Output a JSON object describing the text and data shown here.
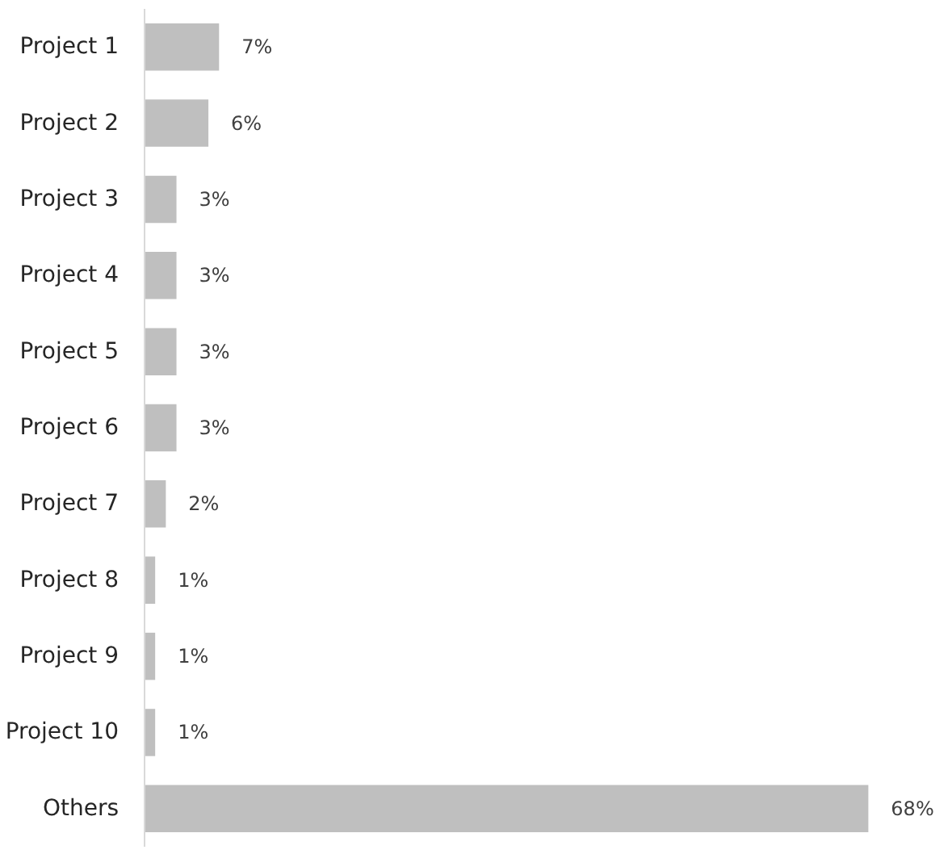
{
  "chart_data": {
    "type": "bar",
    "orientation": "horizontal",
    "categories": [
      "Project 1",
      "Project 2",
      "Project 3",
      "Project 4",
      "Project 5",
      "Project 6",
      "Project 7",
      "Project 8",
      "Project 9",
      "Project 10",
      "Others"
    ],
    "values": [
      7,
      6,
      3,
      3,
      3,
      3,
      2,
      1,
      1,
      1,
      68
    ],
    "color": "#bfbfbf",
    "value_labels": [
      "7%",
      "6%",
      "3%",
      "3%",
      "3%",
      "3%",
      "2%",
      "1%",
      "1%",
      "1%",
      "68%"
    ],
    "grid": false
  }
}
